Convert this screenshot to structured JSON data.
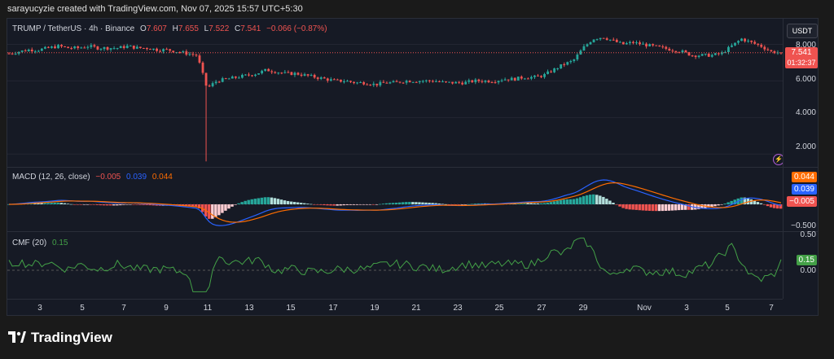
{
  "header": {
    "text": "sarayucyzie created with TradingView.com, Nov 07, 2025 15:57 UTC+5:30"
  },
  "main_legend": {
    "symbol": "TRUMP / TetherUS · 4h · Binance",
    "o_label": "O",
    "o": "7.607",
    "h_label": "H",
    "h": "7.655",
    "l_label": "L",
    "l": "7.522",
    "c_label": "C",
    "c": "7.541",
    "change": "−0.066 (−0.87%)"
  },
  "currency_button": "USDT",
  "price_axis": {
    "ticks": [
      "8.000",
      "6.000",
      "4.000",
      "2.000"
    ],
    "last_price": "7.541",
    "countdown": "01:32:37"
  },
  "macd": {
    "label": "MACD (12, 26, close)",
    "hist": "−0.005",
    "macd": "0.039",
    "signal": "0.044",
    "axis_badges": [
      "0.044",
      "0.039",
      "−0.005"
    ],
    "axis_tick": "−0.500"
  },
  "cmf": {
    "label": "CMF (20)",
    "value": "0.15",
    "axis_tick_top": "0.50",
    "axis_tick_zero": "0.00",
    "axis_badge": "0.15"
  },
  "time_axis": [
    "3",
    "5",
    "7",
    "9",
    "11",
    "13",
    "15",
    "17",
    "19",
    "21",
    "23",
    "25",
    "27",
    "29",
    "Nov",
    "3",
    "5",
    "7"
  ],
  "brand": "TradingView",
  "colors": {
    "up": "#26a69a",
    "down": "#ef5350",
    "macd": "#2962ff",
    "signal": "#ff6d00",
    "cmf": "#43a047",
    "bg": "#161a25"
  },
  "chart_data": {
    "type": "candlestick",
    "title": "TRUMP / TetherUS · 4h · Binance",
    "price_ticks": [
      8,
      6,
      4,
      2
    ],
    "ylim": [
      1.3,
      9.4
    ],
    "x_categories": [
      "3",
      "5",
      "7",
      "9",
      "11",
      "13",
      "15",
      "17",
      "19",
      "21",
      "23",
      "25",
      "27",
      "29",
      "Nov",
      "3",
      "5",
      "7"
    ],
    "close_path": [
      [
        0,
        7.5
      ],
      [
        1,
        7.6
      ],
      [
        2,
        7.7
      ],
      [
        3,
        7.7
      ],
      [
        4,
        7.8
      ],
      [
        5,
        7.9
      ],
      [
        6,
        7.8
      ],
      [
        7,
        7.8
      ],
      [
        8,
        7.9
      ],
      [
        9,
        7.8
      ],
      [
        10,
        7.8
      ],
      [
        11,
        7.8
      ],
      [
        12,
        7.9
      ],
      [
        13,
        7.8
      ],
      [
        14,
        7.8
      ],
      [
        15,
        7.7
      ],
      [
        16,
        7.7
      ],
      [
        17,
        7.6
      ],
      [
        18,
        7.5
      ],
      [
        19,
        7.4
      ],
      [
        20,
        5.6
      ],
      [
        21,
        6.0
      ],
      [
        22,
        6.1
      ],
      [
        23,
        6.2
      ],
      [
        24,
        6.3
      ],
      [
        25,
        6.4
      ],
      [
        26,
        6.6
      ],
      [
        27,
        6.5
      ],
      [
        28,
        6.4
      ],
      [
        29,
        6.4
      ],
      [
        30,
        6.3
      ],
      [
        31,
        6.2
      ],
      [
        32,
        6.1
      ],
      [
        33,
        6.0
      ],
      [
        34,
        6.0
      ],
      [
        35,
        5.9
      ],
      [
        36,
        5.9
      ],
      [
        37,
        5.8
      ],
      [
        38,
        5.9
      ],
      [
        39,
        5.9
      ],
      [
        40,
        6.0
      ],
      [
        41,
        6.0
      ],
      [
        42,
        6.0
      ],
      [
        43,
        6.0
      ],
      [
        44,
        5.9
      ],
      [
        45,
        5.9
      ],
      [
        46,
        5.9
      ],
      [
        47,
        6.0
      ],
      [
        48,
        6.0
      ],
      [
        49,
        6.0
      ],
      [
        50,
        6.1
      ],
      [
        51,
        6.1
      ],
      [
        52,
        6.2
      ],
      [
        53,
        6.2
      ],
      [
        54,
        6.3
      ],
      [
        55,
        6.6
      ],
      [
        56,
        6.9
      ],
      [
        57,
        7.1
      ],
      [
        58,
        7.8
      ],
      [
        59,
        8.3
      ],
      [
        60,
        8.4
      ],
      [
        61,
        8.2
      ],
      [
        62,
        8.0
      ],
      [
        63,
        8.1
      ],
      [
        64,
        8.0
      ],
      [
        65,
        7.9
      ],
      [
        66,
        7.8
      ],
      [
        67,
        7.7
      ],
      [
        68,
        7.6
      ],
      [
        69,
        7.4
      ],
      [
        70,
        7.4
      ],
      [
        71,
        7.4
      ],
      [
        72,
        7.5
      ],
      [
        73,
        7.9
      ],
      [
        74,
        8.3
      ],
      [
        75,
        8.1
      ],
      [
        76,
        7.9
      ],
      [
        77,
        7.6
      ],
      [
        78,
        7.541
      ]
    ],
    "spike_low": 1.6,
    "macd_series": {
      "macd_last": 0.039,
      "signal_last": 0.044,
      "hist_last": -0.005
    },
    "cmf_last": 0.15
  }
}
